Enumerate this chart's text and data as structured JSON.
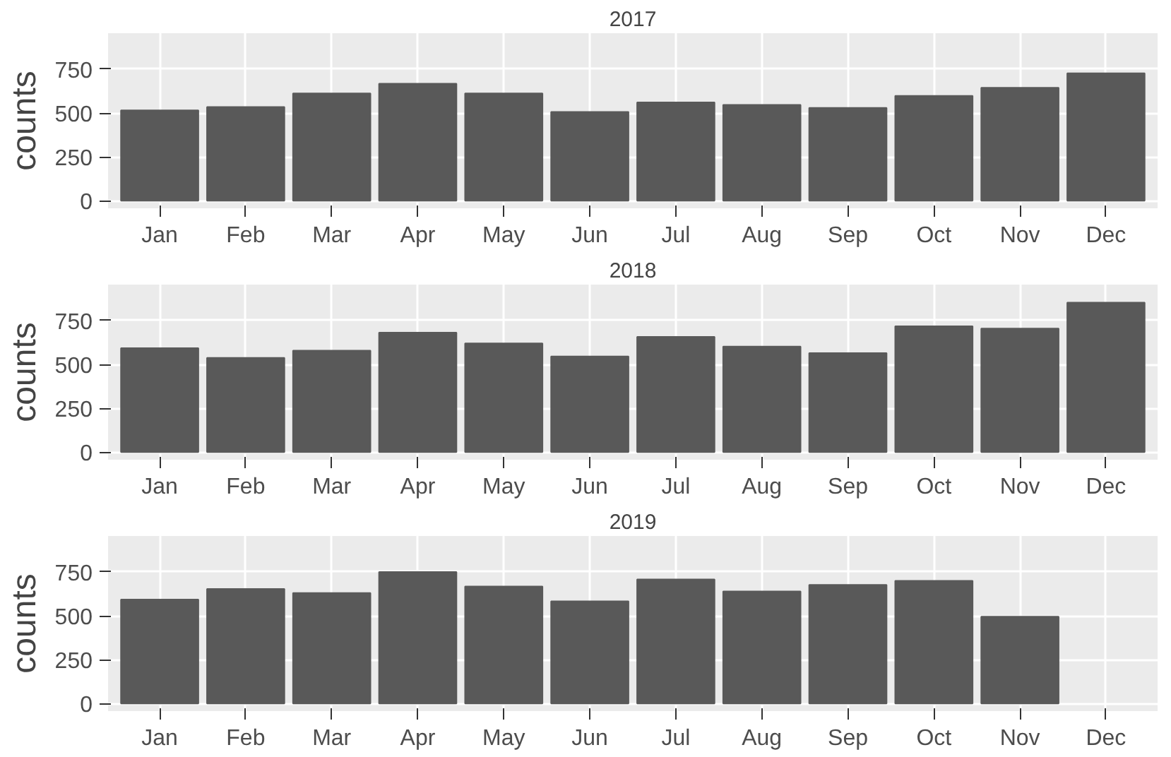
{
  "chart_data": [
    {
      "type": "bar",
      "title": "2017",
      "ylabel": "counts",
      "categories": [
        "Jan",
        "Feb",
        "Mar",
        "Apr",
        "May",
        "Jun",
        "Jul",
        "Aug",
        "Sep",
        "Oct",
        "Nov",
        "Dec"
      ],
      "values": [
        515,
        534,
        612,
        667,
        612,
        506,
        561,
        547,
        529,
        598,
        644,
        727
      ],
      "color": "#595959",
      "ylim": [
        -43,
        955
      ],
      "yticks": [
        0,
        250,
        500,
        750
      ],
      "grid": true
    },
    {
      "type": "bar",
      "title": "2018",
      "ylabel": "counts",
      "categories": [
        "Jan",
        "Feb",
        "Mar",
        "Apr",
        "May",
        "Jun",
        "Jul",
        "Aug",
        "Sep",
        "Oct",
        "Nov",
        "Dec"
      ],
      "values": [
        593,
        537,
        579,
        681,
        620,
        546,
        657,
        602,
        565,
        718,
        704,
        852
      ],
      "color": "#595959",
      "ylim": [
        -43,
        955
      ],
      "yticks": [
        0,
        250,
        500,
        750
      ],
      "grid": true
    },
    {
      "type": "bar",
      "title": "2019",
      "ylabel": "counts",
      "categories": [
        "Jan",
        "Feb",
        "Mar",
        "Apr",
        "May",
        "Jun",
        "Jul",
        "Aug",
        "Sep",
        "Oct",
        "Nov",
        "Dec"
      ],
      "values": [
        593,
        653,
        630,
        750,
        667,
        583,
        708,
        639,
        676,
        699,
        495,
        null
      ],
      "color": "#595959",
      "ylim": [
        -43,
        955
      ],
      "yticks": [
        0,
        250,
        500,
        750
      ],
      "grid": true
    }
  ]
}
